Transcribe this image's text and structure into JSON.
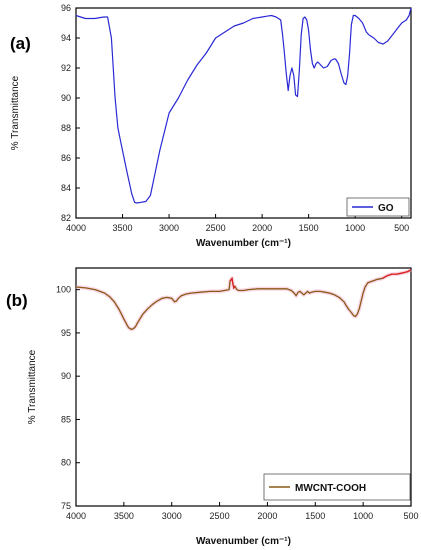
{
  "chart_data": [
    {
      "type": "line",
      "panel_label": "(a)",
      "xlabel": "Wavenumber (cm⁻¹)",
      "ylabel": "% Transmittance",
      "xlim": [
        4000,
        400
      ],
      "ylim": [
        82,
        96
      ],
      "x_ticks": [
        4000,
        3500,
        3000,
        2500,
        2000,
        1500,
        1000,
        500
      ],
      "y_ticks": [
        82,
        84,
        86,
        88,
        90,
        92,
        94,
        96
      ],
      "grid": false,
      "legend_position": "bottom-right",
      "colors": {
        "series": "#2a2ad4",
        "frame": "#000000"
      },
      "series": [
        {
          "name": "GO",
          "x": [
            4000,
            3900,
            3800,
            3700,
            3660,
            3620,
            3580,
            3550,
            3500,
            3450,
            3400,
            3370,
            3350,
            3300,
            3250,
            3200,
            3150,
            3100,
            3000,
            2900,
            2800,
            2700,
            2600,
            2500,
            2400,
            2300,
            2200,
            2100,
            2000,
            1950,
            1900,
            1850,
            1800,
            1780,
            1760,
            1740,
            1720,
            1700,
            1680,
            1660,
            1640,
            1620,
            1600,
            1580,
            1560,
            1540,
            1520,
            1500,
            1480,
            1460,
            1440,
            1420,
            1400,
            1370,
            1340,
            1300,
            1260,
            1230,
            1210,
            1180,
            1150,
            1120,
            1100,
            1080,
            1060,
            1050,
            1040,
            1020,
            1000,
            960,
            920,
            880,
            850,
            800,
            750,
            700,
            650,
            600,
            550,
            500,
            450,
            420,
            400
          ],
          "y": [
            95.5,
            95.3,
            95.3,
            95.4,
            95.4,
            94.0,
            90.0,
            88.0,
            86.5,
            85.0,
            83.6,
            83.05,
            83.0,
            83.05,
            83.1,
            83.5,
            85.0,
            86.5,
            89.0,
            90.0,
            91.2,
            92.2,
            93.0,
            94.0,
            94.4,
            94.8,
            95.0,
            95.3,
            95.4,
            95.45,
            95.5,
            95.4,
            95.2,
            94.2,
            93.0,
            91.6,
            90.5,
            91.5,
            92.0,
            91.5,
            90.2,
            90.1,
            91.8,
            94.2,
            95.3,
            95.4,
            95.2,
            94.5,
            93.2,
            92.3,
            92.0,
            92.3,
            92.4,
            92.2,
            92.0,
            92.1,
            92.5,
            92.6,
            92.6,
            92.3,
            91.6,
            91.0,
            90.9,
            91.5,
            93.0,
            94.0,
            94.9,
            95.5,
            95.5,
            95.3,
            95.0,
            94.4,
            94.2,
            94.0,
            93.7,
            93.6,
            93.8,
            94.2,
            94.6,
            95.0,
            95.2,
            95.5,
            96.0
          ]
        }
      ]
    },
    {
      "type": "line",
      "panel_label": "(b)",
      "xlabel": "Wavenumber (cm⁻¹)",
      "ylabel": "% Transmittance",
      "xlim": [
        4000,
        500
      ],
      "ylim": [
        75,
        102.5
      ],
      "x_ticks": [
        4000,
        3500,
        3000,
        2500,
        2000,
        1500,
        1000,
        500
      ],
      "y_ticks": [
        75,
        80,
        85,
        90,
        95,
        100
      ],
      "grid": false,
      "legend_position": "bottom-right",
      "colors": {
        "series": "#8a5a18",
        "shadow": "#f0a8c8",
        "highlight": "#e02020",
        "frame": "#000000"
      },
      "series": [
        {
          "name": "MWCNT-COOH",
          "x": [
            4000,
            3900,
            3800,
            3700,
            3650,
            3600,
            3550,
            3500,
            3470,
            3450,
            3420,
            3400,
            3380,
            3350,
            3300,
            3250,
            3200,
            3150,
            3100,
            3050,
            3000,
            2970,
            2950,
            2930,
            2900,
            2850,
            2800,
            2700,
            2600,
            2500,
            2450,
            2400,
            2390,
            2370,
            2360,
            2350,
            2340,
            2320,
            2300,
            2250,
            2200,
            2100,
            2000,
            1900,
            1800,
            1750,
            1720,
            1700,
            1680,
            1660,
            1640,
            1620,
            1600,
            1580,
            1560,
            1540,
            1500,
            1450,
            1400,
            1350,
            1300,
            1250,
            1200,
            1180,
            1150,
            1120,
            1100,
            1080,
            1060,
            1040,
            1020,
            1000,
            980,
            950,
            900,
            850,
            800,
            750,
            700,
            650,
            600,
            560,
            530,
            500
          ],
          "y": [
            100.3,
            100.2,
            100.0,
            99.6,
            99.2,
            98.6,
            97.7,
            96.6,
            96.0,
            95.6,
            95.4,
            95.5,
            95.7,
            96.3,
            97.2,
            97.8,
            98.3,
            98.7,
            99.0,
            99.1,
            99.0,
            98.6,
            98.7,
            99.0,
            99.3,
            99.5,
            99.6,
            99.7,
            99.8,
            99.8,
            99.9,
            100.0,
            101.0,
            101.3,
            100.6,
            100.2,
            100.4,
            100.0,
            99.9,
            99.9,
            100.0,
            100.1,
            100.1,
            100.1,
            100.1,
            99.9,
            99.6,
            99.3,
            99.7,
            99.8,
            99.6,
            99.4,
            99.6,
            99.8,
            99.6,
            99.7,
            99.8,
            99.8,
            99.7,
            99.6,
            99.4,
            99.1,
            98.6,
            98.2,
            97.7,
            97.3,
            97.0,
            96.9,
            97.2,
            97.8,
            98.7,
            99.6,
            100.3,
            100.8,
            101.0,
            101.2,
            101.3,
            101.6,
            101.8,
            101.8,
            101.9,
            102.0,
            102.1,
            102.3
          ]
        }
      ]
    }
  ]
}
